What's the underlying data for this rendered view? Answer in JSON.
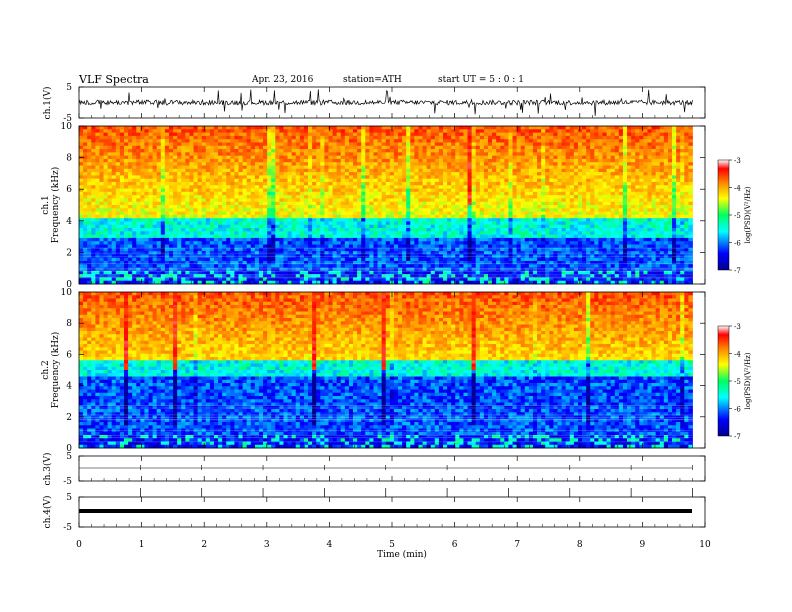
{
  "header": {
    "title": "VLF Spectra",
    "date": "Apr. 23, 2016",
    "station": "station=ATH",
    "start": "start UT = 5 : 0 : 1"
  },
  "colorbar": {
    "label": "log(PSD)(V²/Hz)",
    "ticks": [
      "-3",
      "-4",
      "-5",
      "-6",
      "-7"
    ],
    "range": [
      -7,
      -3
    ]
  },
  "chart_data": [
    {
      "type": "line",
      "panel": "ch1-waveform",
      "ylabel": "ch.1(V)",
      "yticks": [
        "5",
        "-5"
      ],
      "ylim": [
        -5,
        5
      ],
      "x_range_min": [
        0,
        9.8
      ],
      "description_visible": "noisy waveform centered near 0 V with spikes"
    },
    {
      "type": "heatmap",
      "panel": "ch1-spectrogram",
      "ylabel_channel": "ch.1",
      "ylabel": "Frequency (kHz)",
      "yticks": [
        "0",
        "2",
        "4",
        "6",
        "8",
        "10"
      ],
      "ylim": [
        0,
        10
      ],
      "x_range_min": [
        0,
        9.8
      ],
      "zlabel": "log(PSD)(V²/Hz)",
      "zlim": [
        -7,
        -3
      ]
    },
    {
      "type": "heatmap",
      "panel": "ch2-spectrogram",
      "ylabel_channel": "ch.2",
      "ylabel": "Frequency (kHz)",
      "yticks": [
        "0",
        "2",
        "4",
        "6",
        "8",
        "10"
      ],
      "ylim": [
        0,
        10
      ],
      "x_range_min": [
        0,
        9.8
      ],
      "zlabel": "log(PSD)(V²/Hz)",
      "zlim": [
        -7,
        -3
      ]
    },
    {
      "type": "line",
      "panel": "ch3-waveform",
      "ylabel": "ch.3(V)",
      "yticks": [
        "5",
        "-5"
      ],
      "ylim": [
        -5,
        5
      ],
      "x_range_min": [
        0,
        9.8
      ]
    },
    {
      "type": "line",
      "panel": "ch4-waveform",
      "ylabel": "ch.4(V)",
      "yticks": [
        "5",
        "-5"
      ],
      "ylim": [
        -5,
        5
      ],
      "x_range_min": [
        0,
        9.8
      ]
    }
  ],
  "xaxis": {
    "label": "Time (min)",
    "ticks": [
      "0",
      "1",
      "2",
      "3",
      "4",
      "5",
      "6",
      "7",
      "8",
      "9",
      "10"
    ],
    "range": [
      0,
      10
    ]
  }
}
